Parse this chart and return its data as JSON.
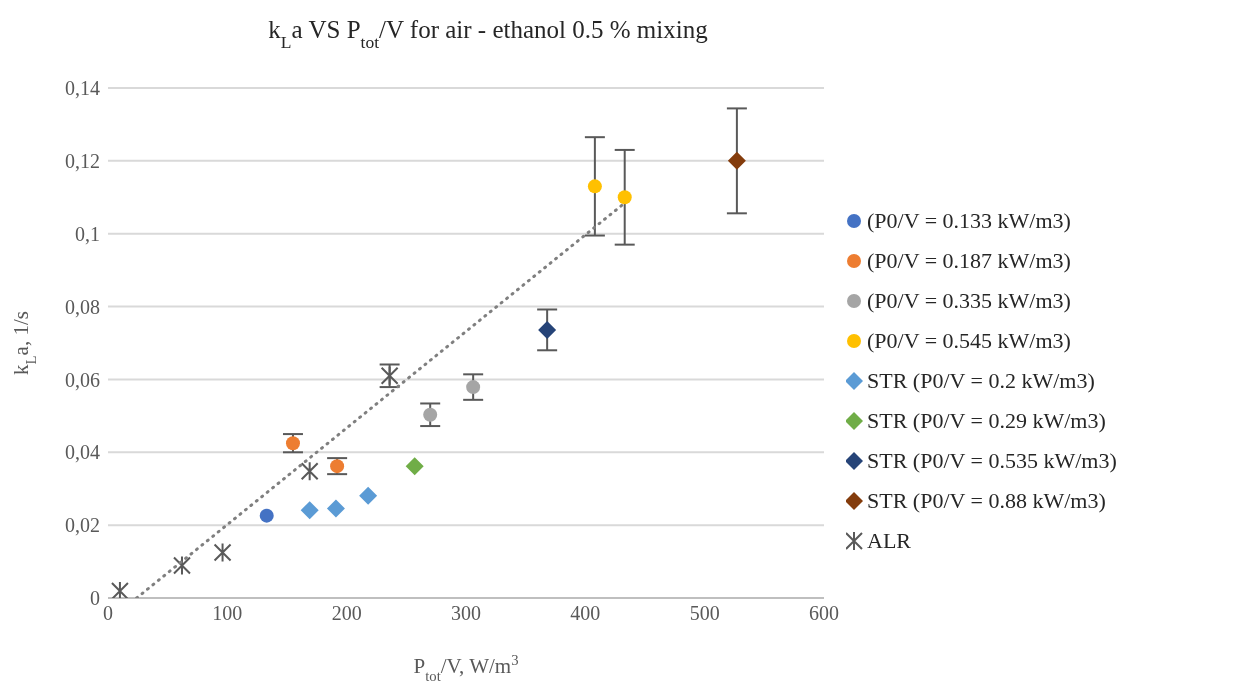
{
  "chart_data": {
    "type": "scatter",
    "title": "k$_{L}$a VS P$_{tot}$/V for air - ethanol 0.5 % mixing",
    "xlabel": "P$_{tot}$/V, W/m$^{3}$",
    "ylabel": "k$_{L}$a, 1/s",
    "xlim": [
      0,
      600
    ],
    "xticks": [
      0,
      100,
      200,
      300,
      400,
      500,
      600
    ],
    "ylim": [
      0,
      0.14
    ],
    "yticks": [
      0,
      {
        "value": 0.02,
        "label": "0,02"
      },
      {
        "value": 0.04,
        "label": "0,04"
      },
      {
        "value": 0.06,
        "label": "0,06"
      },
      {
        "value": 0.08,
        "label": "0,08"
      },
      {
        "value": 0.1,
        "label": "0,1"
      },
      {
        "value": 0.12,
        "label": "0,12"
      },
      {
        "value": 0.14,
        "label": "0,14"
      }
    ],
    "grid": "y",
    "legend": "right",
    "series": [
      {
        "name": "(P0/V = 0.133 kW/m3)",
        "color": "#4472c4",
        "marker": "circle",
        "x": [
          133
        ],
        "values": [
          0.0226
        ]
      },
      {
        "name": "(P0/V = 0.187 kW/m3)",
        "color": "#ed7d31",
        "marker": "circle",
        "x": [
          155,
          192
        ],
        "values": [
          0.0425,
          0.0362
        ],
        "errors": [
          0.0025,
          0.0022
        ]
      },
      {
        "name": "(P0/V = 0.335 kW/m3)",
        "color": "#a5a5a5",
        "marker": "circle",
        "x": [
          270,
          306
        ],
        "values": [
          0.0503,
          0.0579
        ],
        "errors": [
          0.0031,
          0.0035
        ]
      },
      {
        "name": "(P0/V = 0.545 kW/m3)",
        "color": "#ffc000",
        "marker": "circle",
        "x": [
          408,
          433
        ],
        "values": [
          0.113,
          0.11
        ],
        "errors": [
          0.0135,
          0.013
        ]
      },
      {
        "name": "STR (P0/V = 0.2 kW/m3)",
        "color": "#5b9bd5",
        "marker": "diamond",
        "x": [
          169,
          191,
          218
        ],
        "values": [
          0.0241,
          0.0246,
          0.0281
        ]
      },
      {
        "name": "STR (P0/V = 0.29 kW/m3)",
        "color": "#70ad47",
        "marker": "diamond",
        "x": [
          257
        ],
        "values": [
          0.0362
        ]
      },
      {
        "name": "STR (P0/V = 0.535 kW/m3)",
        "color": "#264478",
        "marker": "diamond",
        "x": [
          368
        ],
        "values": [
          0.0736
        ],
        "errors": [
          0.0056
        ]
      },
      {
        "name": "STR (P0/V = 0.88 kW/m3)",
        "color": "#843c0c",
        "marker": "diamond",
        "x": [
          527
        ],
        "values": [
          0.12
        ],
        "errors": [
          0.0144
        ]
      },
      {
        "name": "ALR",
        "color": "#595959",
        "marker": "cross",
        "x": [
          10,
          62,
          96,
          169,
          236
        ],
        "values": [
          0.0019,
          0.0089,
          0.0125,
          0.0348,
          0.061
        ],
        "errors": [
          null,
          null,
          null,
          null,
          0.0031
        ]
      },
      {
        "type": "line",
        "color": "#7f7f7f",
        "line_style": "dotted",
        "marker": "none",
        "x": [
          24,
          434
        ],
        "values": [
          0,
          0.1087
        ]
      }
    ]
  }
}
